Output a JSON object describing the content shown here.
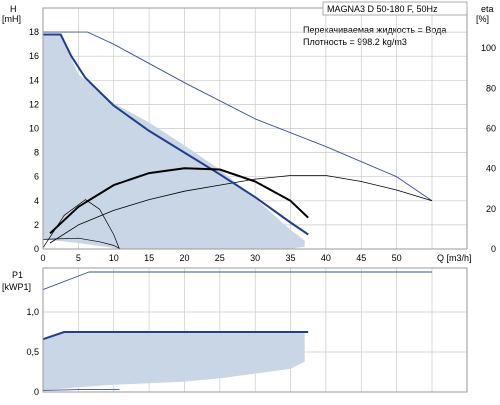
{
  "colors": {
    "grid": "#c9c9c9",
    "frame": "#9a9a9a",
    "blue": "#1f3f8f",
    "thin_blue": "#3a4f9a",
    "shade": "#c8d6e6",
    "black": "#000000"
  },
  "chart_data": [
    {
      "type": "line",
      "title": "MAGNA3 D 50-180 F, 50Hz",
      "annotations": [
        "Перекачиваемая жидкость = Вода",
        "Плотность = 998.2 kg/m3"
      ],
      "ylabel": "H",
      "yunit": "[mH]",
      "xlabel": "Q",
      "xunit": "[m3/h]",
      "y2label": "eta",
      "y2unit": "[%]",
      "xlim": [
        0,
        60
      ],
      "ylim": [
        0,
        20
      ],
      "y2lim": [
        0,
        120
      ],
      "xticks": [
        0,
        5,
        10,
        15,
        20,
        25,
        30,
        35,
        40,
        45,
        50
      ],
      "xtick_labels": [
        "0",
        "5",
        "10",
        "15",
        "20",
        "25",
        "30",
        "35",
        "40",
        "45",
        "50",
        "Q [m3/h]"
      ],
      "yticks": [
        0,
        2,
        4,
        6,
        8,
        10,
        12,
        14,
        16,
        18
      ],
      "y2ticks": [
        0,
        20,
        40,
        60,
        80,
        100
      ],
      "grid": true,
      "curves": {
        "operating_area": [
          [
            0,
            17.8
          ],
          [
            2.5,
            17.8
          ],
          [
            5,
            14.5
          ],
          [
            10,
            12.1
          ],
          [
            15,
            10.5
          ],
          [
            20,
            8.6
          ],
          [
            25,
            6.6
          ],
          [
            30,
            4.2
          ],
          [
            35,
            1.6
          ],
          [
            37,
            0.7
          ],
          [
            37,
            0.2
          ],
          [
            35,
            0
          ],
          [
            30,
            0
          ],
          [
            25,
            0
          ],
          [
            20,
            0
          ],
          [
            15,
            0
          ],
          [
            11,
            0
          ],
          [
            5,
            0.5
          ],
          [
            0,
            0.8
          ]
        ],
        "max_curve": [
          [
            0,
            17.8
          ],
          [
            2.5,
            17.8
          ],
          [
            4,
            16
          ],
          [
            6,
            14.2
          ],
          [
            10,
            11.9
          ],
          [
            15,
            9.8
          ],
          [
            20,
            8
          ],
          [
            25,
            6.2
          ],
          [
            30,
            4.3
          ],
          [
            35,
            2.2
          ],
          [
            37.5,
            1.2
          ]
        ],
        "efficiency_thick": [
          [
            1,
            1.3
          ],
          [
            5,
            3.5
          ],
          [
            10,
            5.3
          ],
          [
            15,
            6.3
          ],
          [
            20,
            6.7
          ],
          [
            25,
            6.6
          ],
          [
            30,
            5.6
          ],
          [
            35,
            4
          ],
          [
            37.5,
            2.6
          ]
        ],
        "efficiency_thin": [
          [
            1,
            0.5
          ],
          [
            5,
            2
          ],
          [
            10,
            3.2
          ],
          [
            15,
            4.1
          ],
          [
            20,
            4.8
          ],
          [
            25,
            5.3
          ],
          [
            30,
            5.8
          ],
          [
            35,
            6.1
          ],
          [
            40,
            6.1
          ],
          [
            45,
            5.6
          ],
          [
            50,
            4.9
          ],
          [
            55,
            4
          ]
        ],
        "max_speed_thin": [
          [
            0,
            18
          ],
          [
            6.3,
            18
          ],
          [
            10,
            17
          ],
          [
            20,
            13.8
          ],
          [
            30,
            10.8
          ],
          [
            40,
            8.5
          ],
          [
            50,
            6
          ],
          [
            55,
            4
          ]
        ],
        "min_speed_efficiency": [
          [
            0,
            0.1
          ],
          [
            3,
            2.8
          ],
          [
            6,
            4.1
          ],
          [
            8,
            3.3
          ],
          [
            10,
            1.2
          ],
          [
            10.8,
            0
          ]
        ],
        "min_speed_head": [
          [
            0,
            0.8
          ],
          [
            5,
            0.9
          ],
          [
            8,
            0.6
          ],
          [
            10,
            0.3
          ],
          [
            11,
            0
          ]
        ]
      }
    },
    {
      "type": "line",
      "ylabel": "P1",
      "yunit": "[kWP1]",
      "xlim": [
        0,
        60
      ],
      "ylim": [
        0,
        1.55
      ],
      "yticks": [
        0,
        0.5,
        1.0
      ],
      "ytick_labels": [
        "0",
        "0,5",
        "1,0"
      ],
      "xticks": [
        0,
        5,
        10,
        15,
        20,
        25,
        30,
        35,
        40,
        45,
        50
      ],
      "grid": true,
      "curves": {
        "area": [
          [
            0,
            0.66
          ],
          [
            3,
            0.75
          ],
          [
            37,
            0.75
          ],
          [
            37,
            0.38
          ],
          [
            35,
            0.29
          ],
          [
            30,
            0.23
          ],
          [
            25,
            0.17
          ],
          [
            20,
            0.13
          ],
          [
            15,
            0.11
          ],
          [
            10,
            0.09
          ],
          [
            5,
            0.06
          ],
          [
            0,
            0.02
          ]
        ],
        "power_max_thin": [
          [
            0,
            1.28
          ],
          [
            6.5,
            1.5
          ],
          [
            55,
            1.5
          ]
        ],
        "power_max_blue": [
          [
            0,
            0.66
          ],
          [
            3,
            0.75
          ],
          [
            37.5,
            0.75
          ]
        ],
        "power_min": [
          [
            0,
            0.02
          ],
          [
            5,
            0.03
          ],
          [
            10.8,
            0.03
          ]
        ]
      }
    }
  ]
}
